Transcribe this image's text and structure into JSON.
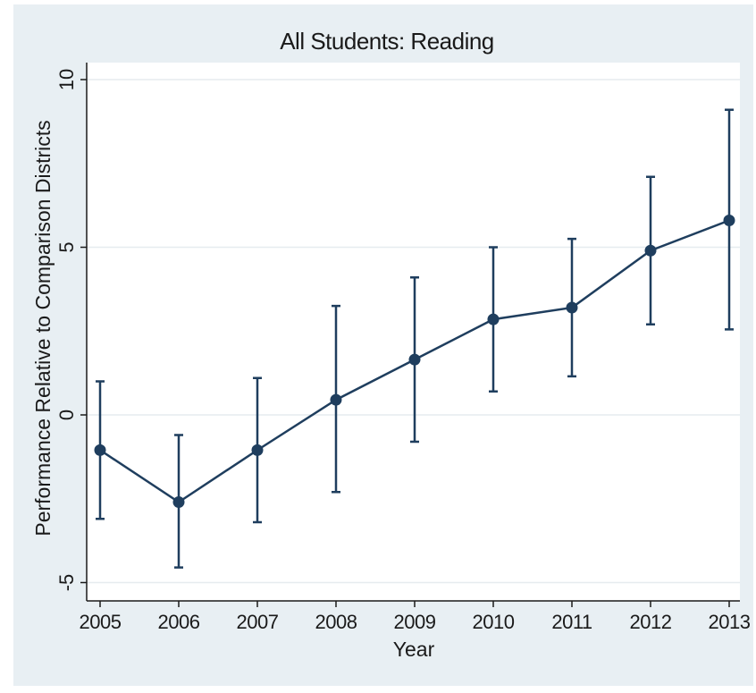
{
  "chart_data": {
    "type": "line",
    "title": "All Students: Reading",
    "xlabel": "Year",
    "ylabel": "Performance Relative to Comparison Districts",
    "x": [
      2005,
      2006,
      2007,
      2008,
      2009,
      2010,
      2011,
      2012,
      2013
    ],
    "x_tick_labels": [
      "2005",
      "2006",
      "2007",
      "2008",
      "2009",
      "2010",
      "2011",
      "2012",
      "2013"
    ],
    "y_ticks": [
      -5,
      0,
      5,
      10
    ],
    "y_tick_labels": [
      "-5",
      "0",
      "5",
      "10"
    ],
    "xlim": [
      2005,
      2013
    ],
    "ylim": [
      -5.5,
      10.5
    ],
    "grid": true,
    "series": [
      {
        "values": [
          -1.05,
          -2.6,
          -1.05,
          0.45,
          1.65,
          2.85,
          3.2,
          4.9,
          5.8
        ],
        "lower": [
          -3.1,
          -4.55,
          -3.2,
          -2.3,
          -0.8,
          0.7,
          1.15,
          2.7,
          2.55
        ],
        "upper": [
          1.0,
          -0.6,
          1.1,
          3.25,
          4.1,
          5.0,
          5.25,
          7.1,
          9.1
        ],
        "color": "#1f3e5e"
      }
    ]
  }
}
